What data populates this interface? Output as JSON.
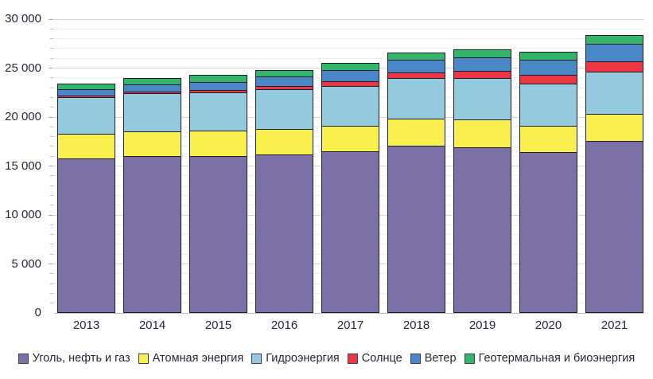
{
  "chart_data": {
    "type": "bar",
    "stacked": true,
    "title": "",
    "xlabel": "",
    "ylabel": "",
    "unit_hint": "TWh",
    "categories": [
      "2013",
      "2014",
      "2015",
      "2016",
      "2017",
      "2018",
      "2019",
      "2020",
      "2021"
    ],
    "series": [
      {
        "name": "Уголь, нефть и газ",
        "color": "#7b71a6",
        "values": [
          15800,
          16000,
          16050,
          16200,
          16500,
          17100,
          16950,
          16400,
          17550
        ]
      },
      {
        "name": "Атомная энергия",
        "color": "#f9ef4d",
        "values": [
          2480,
          2530,
          2570,
          2610,
          2640,
          2700,
          2790,
          2680,
          2800
        ]
      },
      {
        "name": "Гидроэнергия",
        "color": "#93cadd",
        "values": [
          3790,
          3880,
          3890,
          4020,
          4060,
          4190,
          4240,
          4340,
          4270
        ]
      },
      {
        "name": "Солнце",
        "color": "#ee3642",
        "values": [
          130,
          200,
          260,
          330,
          440,
          570,
          700,
          850,
          1040
        ]
      },
      {
        "name": "Ветер",
        "color": "#4a87c6",
        "values": [
          650,
          720,
          830,
          960,
          1140,
          1270,
          1430,
          1600,
          1860
        ]
      },
      {
        "name": "Геотермальная и биоэнергия",
        "color": "#33b56a",
        "values": [
          600,
          650,
          680,
          710,
          740,
          770,
          800,
          820,
          850
        ]
      }
    ],
    "totals": [
      23450,
      23980,
      24280,
      24830,
      25520,
      26600,
      26910,
      26690,
      28370
    ],
    "ylim": [
      0,
      30000
    ],
    "y_major_step": 5000,
    "y_minor_step": 1000,
    "y_tick_labels": [
      "0",
      "5 000",
      "10 000",
      "15 000",
      "20 000",
      "25 000",
      "30 000"
    ],
    "grid": "horizontal-minor-and-major",
    "legend_position": "bottom",
    "bar_border_color": "#1d1d2b",
    "background_color": "#ffffff"
  }
}
